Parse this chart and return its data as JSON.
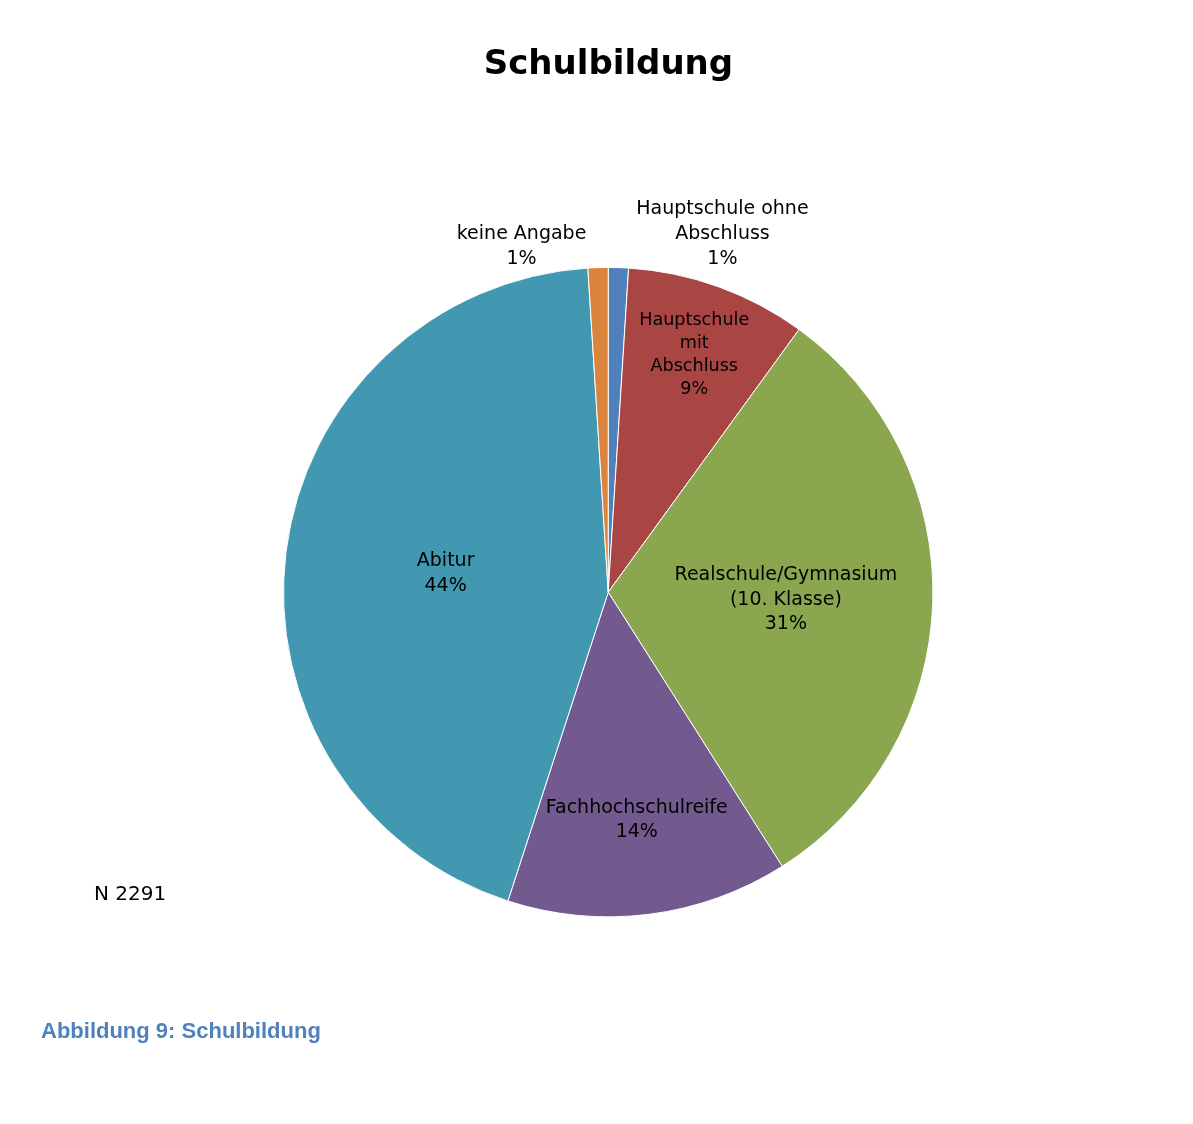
{
  "chart_data": {
    "type": "pie",
    "title": "Schulbildung",
    "categories": [
      "Hauptschule ohne Abschluss",
      "Hauptschule mit Abschluss",
      "Realschule/Gymnasium (10. Klasse)",
      "Fachhochschulreife",
      "Abitur",
      "keine Angabe"
    ],
    "values": [
      1,
      9,
      31,
      14,
      44,
      1
    ],
    "value_labels": [
      "1%",
      "9%",
      "31%",
      "14%",
      "44%",
      "1%"
    ],
    "colors": [
      "#4f81bd",
      "#a94543",
      "#8aa64e",
      "#725a8f",
      "#4298b0",
      "#db843d"
    ],
    "annotations": [
      "N 2291",
      "Abbildung 9: Schulbildung"
    ]
  }
}
